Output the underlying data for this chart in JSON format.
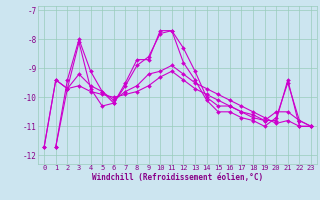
{
  "title": "",
  "xlabel": "Windchill (Refroidissement éolien,°C)",
  "ylabel": "",
  "bg_color": "#cce5f0",
  "grid_color": "#99ccbb",
  "line_color": "#cc00cc",
  "xlim": [
    -0.5,
    23.5
  ],
  "ylim": [
    -12.3,
    -6.85
  ],
  "yticks": [
    -12,
    -11,
    -10,
    -9,
    -8,
    -7
  ],
  "xticks": [
    0,
    1,
    2,
    3,
    4,
    5,
    6,
    7,
    8,
    9,
    10,
    11,
    12,
    13,
    14,
    15,
    16,
    17,
    18,
    19,
    20,
    21,
    22,
    23
  ],
  "series": [
    [
      null,
      -11.7,
      -9.4,
      -8.0,
      -9.1,
      -9.8,
      -10.2,
      -9.5,
      -8.7,
      -8.7,
      -7.7,
      -7.7,
      -8.3,
      -9.1,
      -10.0,
      -10.3,
      -10.3,
      -10.5,
      -10.7,
      -10.8,
      -10.8,
      -9.4,
      -11.0,
      -11.0
    ],
    [
      null,
      -11.7,
      -9.7,
      -9.2,
      -9.6,
      -9.8,
      -10.1,
      -9.8,
      -9.6,
      -9.2,
      -9.1,
      -8.9,
      -9.2,
      -9.5,
      -9.7,
      -9.9,
      -10.1,
      -10.3,
      -10.5,
      -10.7,
      -10.9,
      -10.8,
      -11.0,
      -11.0
    ],
    [
      -11.7,
      -9.4,
      -9.7,
      -8.1,
      -9.7,
      -10.3,
      -10.2,
      -9.6,
      -8.9,
      -8.6,
      -7.8,
      -7.7,
      -8.8,
      -9.4,
      -10.1,
      -10.5,
      -10.5,
      -10.7,
      -10.8,
      -11.0,
      -10.7,
      -9.5,
      -10.8,
      -11.0
    ],
    [
      -11.7,
      -9.4,
      -9.7,
      -9.6,
      -9.8,
      -9.9,
      -10.0,
      -9.9,
      -9.8,
      -9.6,
      -9.3,
      -9.1,
      -9.4,
      -9.7,
      -9.9,
      -10.1,
      -10.3,
      -10.5,
      -10.6,
      -10.8,
      -10.5,
      -10.5,
      -10.8,
      -11.0
    ]
  ],
  "tick_fontsize": 5,
  "xlabel_fontsize": 5.5,
  "marker_size": 2.0,
  "linewidth": 0.8
}
